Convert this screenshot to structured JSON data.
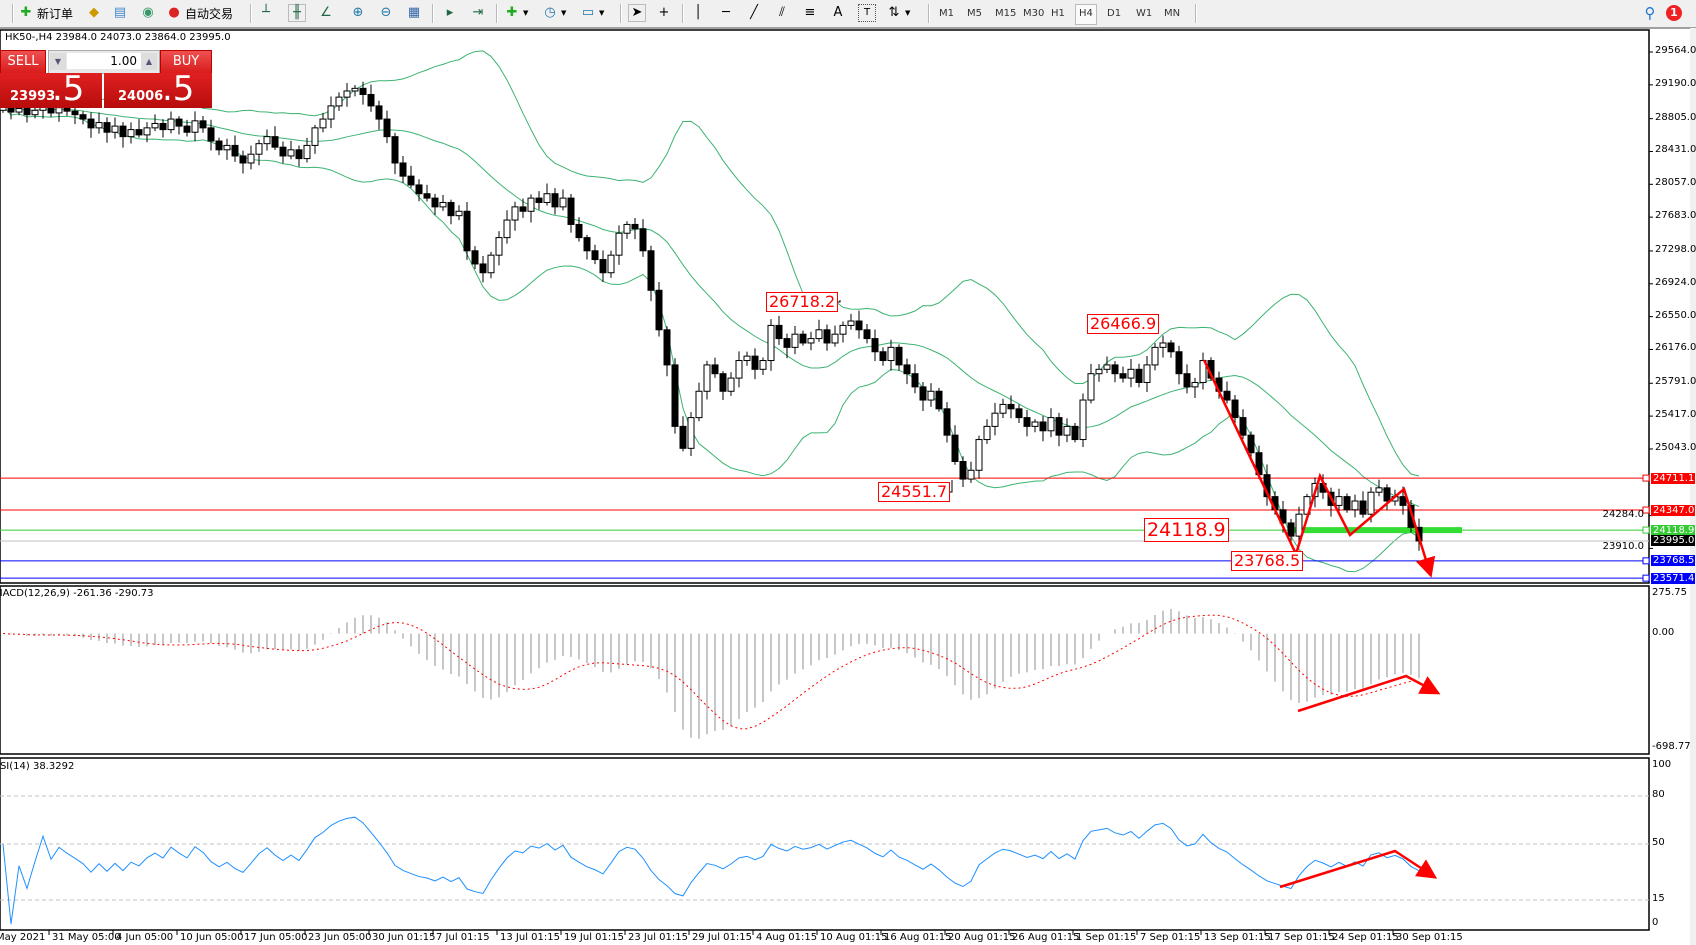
{
  "toolbar": {
    "new_order": "新订单",
    "auto_trading": "自动交易",
    "timeframes": [
      "M1",
      "M5",
      "M15",
      "M30",
      "H1",
      "H4",
      "D1",
      "W1",
      "MN"
    ],
    "active_timeframe": "H4",
    "notification_count": "1"
  },
  "chart": {
    "symbol_info": "HK50-,H4  23984.0 24073.0 23864.0 23995.0"
  },
  "one_click": {
    "sell_label": "SELL",
    "buy_label": "BUY",
    "lot": "1.00",
    "sell_price_main": "23993",
    "sell_price_big": ".5",
    "buy_price_main": "24006",
    "buy_price_big": ".5"
  },
  "price_axis": [
    "29564.0",
    "29190.0",
    "28805.0",
    "28431.0",
    "28057.0",
    "27683.0",
    "27298.0",
    "26924.0",
    "26550.0",
    "26176.0",
    "25791.0",
    "25417.0",
    "25043.0",
    "24284.0",
    "23910.0"
  ],
  "price_levels": [
    {
      "value": "24711.1",
      "color": "#ff0000"
    },
    {
      "value": "24347.0",
      "color": "#ff0000"
    },
    {
      "value": "24118.9",
      "color": "#33cc33"
    },
    {
      "value": "23995.0",
      "color": "#000000",
      "line_color": "#c0c0c0"
    },
    {
      "value": "23768.5",
      "color": "#0000ff"
    },
    {
      "value": "23571.4",
      "color": "#0000ff"
    }
  ],
  "annotations": [
    "26718.2",
    "24551.7",
    "26466.9",
    "24118.9",
    "23768.5"
  ],
  "macd": {
    "label": "MACD(12,26,9) -261.36 -290.73",
    "axis": [
      "275.75",
      "0.00",
      "-698.77"
    ]
  },
  "rsi": {
    "label": "RSI(14) 38.3292",
    "axis": [
      "100",
      "80",
      "50",
      "15",
      "0"
    ]
  },
  "time_axis": [
    "May 2021",
    "31 May 05:00",
    "4 Jun 05:00",
    "10 Jun 05:00",
    "17 Jun 05:00",
    "23 Jun 05:00",
    "30 Jun 01:15",
    "7 Jul 01:15",
    "13 Jul 01:15",
    "19 Jul 01:15",
    "23 Jul 01:15",
    "29 Jul 01:15",
    "4 Aug 01:15",
    "10 Aug 01:15",
    "16 Aug 01:15",
    "20 Aug 01:15",
    "26 Aug 01:15",
    "1 Sep 01:15",
    "7 Sep 01:15",
    "13 Sep 01:15",
    "17 Sep 01:15",
    "24 Sep 01:15",
    "30 Sep 01:15"
  ],
  "chart_data": {
    "type": "candlestick",
    "symbol": "HK50-",
    "timeframe": "H4",
    "indicators": [
      "Bollinger Bands",
      "MACD(12,26,9)",
      "RSI(14)"
    ],
    "ylim": [
      23517,
      29792
    ],
    "macd_ylim": [
      -698.77,
      275.75
    ],
    "rsi_ylim": [
      0,
      100
    ],
    "rsi_levels": [
      80,
      50,
      15
    ],
    "colors": {
      "bull": "#ffffff",
      "bear": "#000000",
      "bands": "#3cb371",
      "signal": "#ff0000",
      "histogram": "#b4b4b4",
      "rsi": "#1e90ff",
      "arrows": "#ff0000"
    },
    "closes": [
      28950,
      28880,
      28920,
      28850,
      28900,
      28980,
      28870,
      28930,
      28890,
      28850,
      28800,
      28700,
      28760,
      28650,
      28720,
      28600,
      28680,
      28620,
      28700,
      28750,
      28680,
      28800,
      28720,
      28650,
      28780,
      28700,
      28550,
      28450,
      28500,
      28380,
      28300,
      28400,
      28520,
      28600,
      28480,
      28380,
      28450,
      28350,
      28500,
      28700,
      28800,
      28950,
      29050,
      29120,
      29150,
      29080,
      28950,
      28800,
      28600,
      28300,
      28150,
      28050,
      27950,
      27900,
      27800,
      27850,
      27700,
      27750,
      27300,
      27150,
      27050,
      27250,
      27450,
      27650,
      27800,
      27750,
      27900,
      27850,
      27950,
      27800,
      27900,
      27600,
      27450,
      27300,
      27200,
      27050,
      27250,
      27500,
      27600,
      27550,
      27300,
      26850,
      26400,
      26000,
      25300,
      25050,
      25400,
      25700,
      26000,
      25900,
      25700,
      25850,
      26050,
      26100,
      25950,
      26050,
      26450,
      26300,
      26200,
      26350,
      26250,
      26300,
      26400,
      26250,
      26350,
      26450,
      26500,
      26400,
      26300,
      26150,
      26050,
      26200,
      26000,
      25900,
      25750,
      25600,
      25700,
      25500,
      25200,
      24900,
      24700,
      24800,
      25150,
      25300,
      25450,
      25550,
      25500,
      25400,
      25300,
      25350,
      25250,
      25400,
      25200,
      25300,
      25150,
      25600,
      25900,
      25950,
      26000,
      25900,
      25850,
      25950,
      25800,
      26000,
      26200,
      26250,
      26150,
      25900,
      25750,
      25800,
      26050,
      25850,
      25700,
      25600,
      25400,
      25200,
      25000,
      24750,
      24500,
      24350,
      24200,
      24050,
      24300,
      24500,
      24650,
      24550,
      24400,
      24500,
      24350,
      24450,
      24300,
      24550,
      24600,
      24450,
      24500,
      24400,
      24150,
      23995
    ]
  }
}
